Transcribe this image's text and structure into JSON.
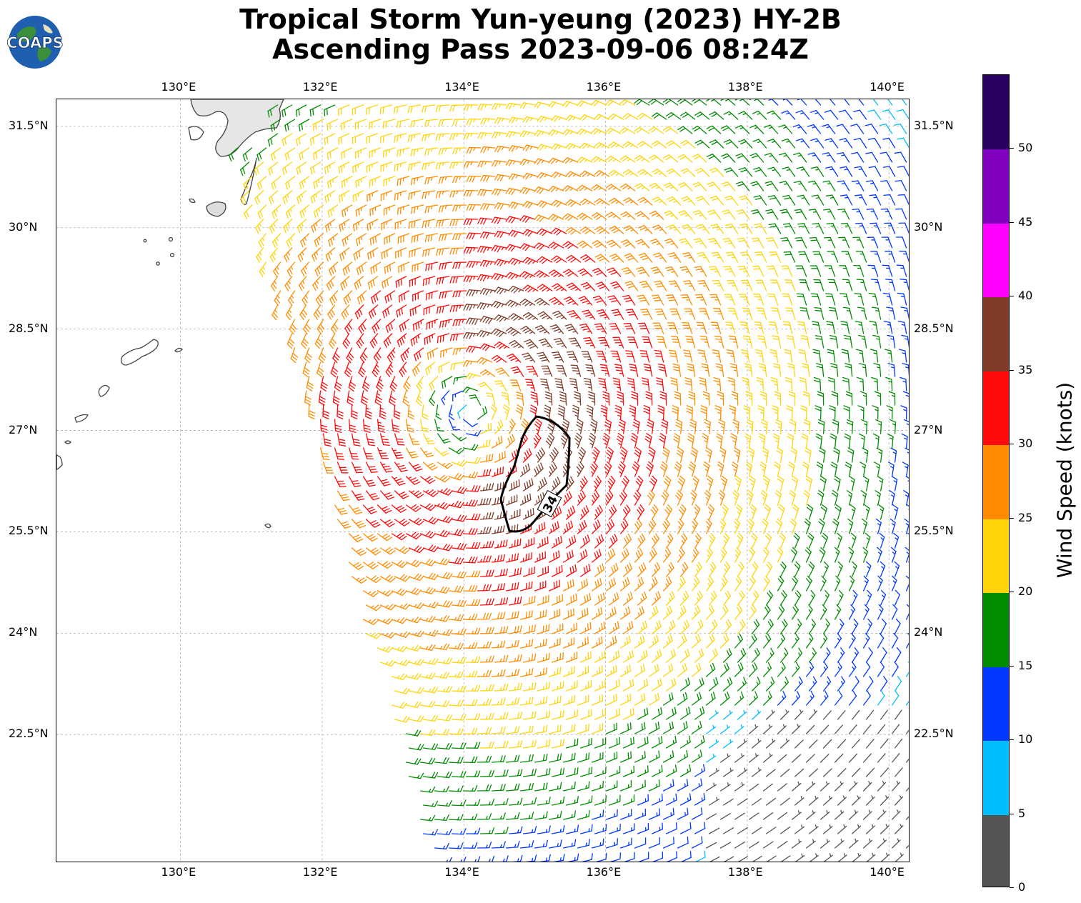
{
  "title": {
    "line1": "Tropical Storm Yun-yeung (2023) HY-2B",
    "line2": "Ascending Pass 2023-09-06 08:24Z"
  },
  "logo": {
    "text": "COAPS"
  },
  "map": {
    "lon_range": [
      128.25,
      140.3
    ],
    "lat_range": [
      20.6,
      31.9
    ],
    "lon_ticks": [
      "130°E",
      "132°E",
      "134°E",
      "136°E",
      "138°E",
      "140°E"
    ],
    "lat_ticks": [
      "31.5°N",
      "30°N",
      "28.5°N",
      "27°N",
      "25.5°N",
      "24°N",
      "22.5°N"
    ],
    "storm_center": {
      "lon": 134.1,
      "lat": 27.3
    },
    "contour_label": "34",
    "gridlines": true
  },
  "colorbar": {
    "title": "Wind Speed (knots)",
    "ticks": [
      "0",
      "5",
      "10",
      "15",
      "20",
      "25",
      "30",
      "35",
      "40",
      "45",
      "50"
    ],
    "bins": [
      {
        "from": 0,
        "to": 5,
        "color": "#555555"
      },
      {
        "from": 5,
        "to": 10,
        "color": "#00bfff"
      },
      {
        "from": 10,
        "to": 15,
        "color": "#0038ff"
      },
      {
        "from": 15,
        "to": 20,
        "color": "#008c00"
      },
      {
        "from": 20,
        "to": 25,
        "color": "#ffd40a"
      },
      {
        "from": 25,
        "to": 30,
        "color": "#ff8c00"
      },
      {
        "from": 30,
        "to": 35,
        "color": "#ff0a0a"
      },
      {
        "from": 35,
        "to": 40,
        "color": "#7f3c28"
      },
      {
        "from": 40,
        "to": 45,
        "color": "#ff00ff"
      },
      {
        "from": 45,
        "to": 50,
        "color": "#8000c0"
      },
      {
        "from": 50,
        "to": 55,
        "color": "#2a0060"
      }
    ]
  }
}
